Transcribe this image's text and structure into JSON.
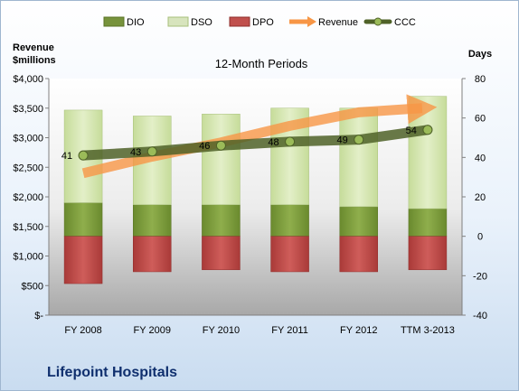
{
  "company": "Lifepoint Hospitals",
  "chart_data": {
    "type": "bar",
    "subtitle": "12-Month Periods",
    "y_left_title": "Revenue\n$millions",
    "y_right_title": "Days",
    "categories": [
      "FY 2008",
      "FY 2009",
      "FY 2010",
      "FY 2011",
      "FY 2012",
      "TTM 3-2013"
    ],
    "ylim_left": [
      0,
      4000
    ],
    "ylim_right": [
      -40,
      80
    ],
    "left_ticks": [
      "$-",
      "$500",
      "$1,000",
      "$1,500",
      "$2,000",
      "$2,500",
      "$3,000",
      "$3,500",
      "$4,000"
    ],
    "right_ticks": [
      "-40",
      "-20",
      "0",
      "20",
      "40",
      "60",
      "80"
    ],
    "legend": {
      "placement": "top",
      "entries": [
        "DIO",
        "DSO",
        "DPO",
        "Revenue",
        "CCC"
      ]
    },
    "series": [
      {
        "name": "DIO",
        "axis": "right",
        "kind": "stacked-bar",
        "color": "#77933c",
        "values": [
          17,
          16,
          16,
          16,
          15,
          14
        ]
      },
      {
        "name": "DSO",
        "axis": "right",
        "kind": "stacked-bar",
        "color": "#d7e4bd",
        "values": [
          47,
          45,
          46,
          49,
          50,
          57
        ]
      },
      {
        "name": "DPO",
        "axis": "right",
        "kind": "negative-bar",
        "color": "#c0504d",
        "values": [
          -24,
          -18,
          -17,
          -18,
          -18,
          -17
        ]
      },
      {
        "name": "Revenue",
        "axis": "left",
        "kind": "line",
        "color": "#f79646",
        "values": [
          2400,
          2680,
          2920,
          3200,
          3430,
          3500
        ]
      },
      {
        "name": "CCC",
        "axis": "right",
        "kind": "line",
        "color": "#4f6228",
        "values": [
          41,
          43,
          46,
          48,
          49,
          54
        ]
      }
    ],
    "data_labels": [
      "41",
      "43",
      "46",
      "48",
      "49",
      "54"
    ],
    "grid": false
  }
}
